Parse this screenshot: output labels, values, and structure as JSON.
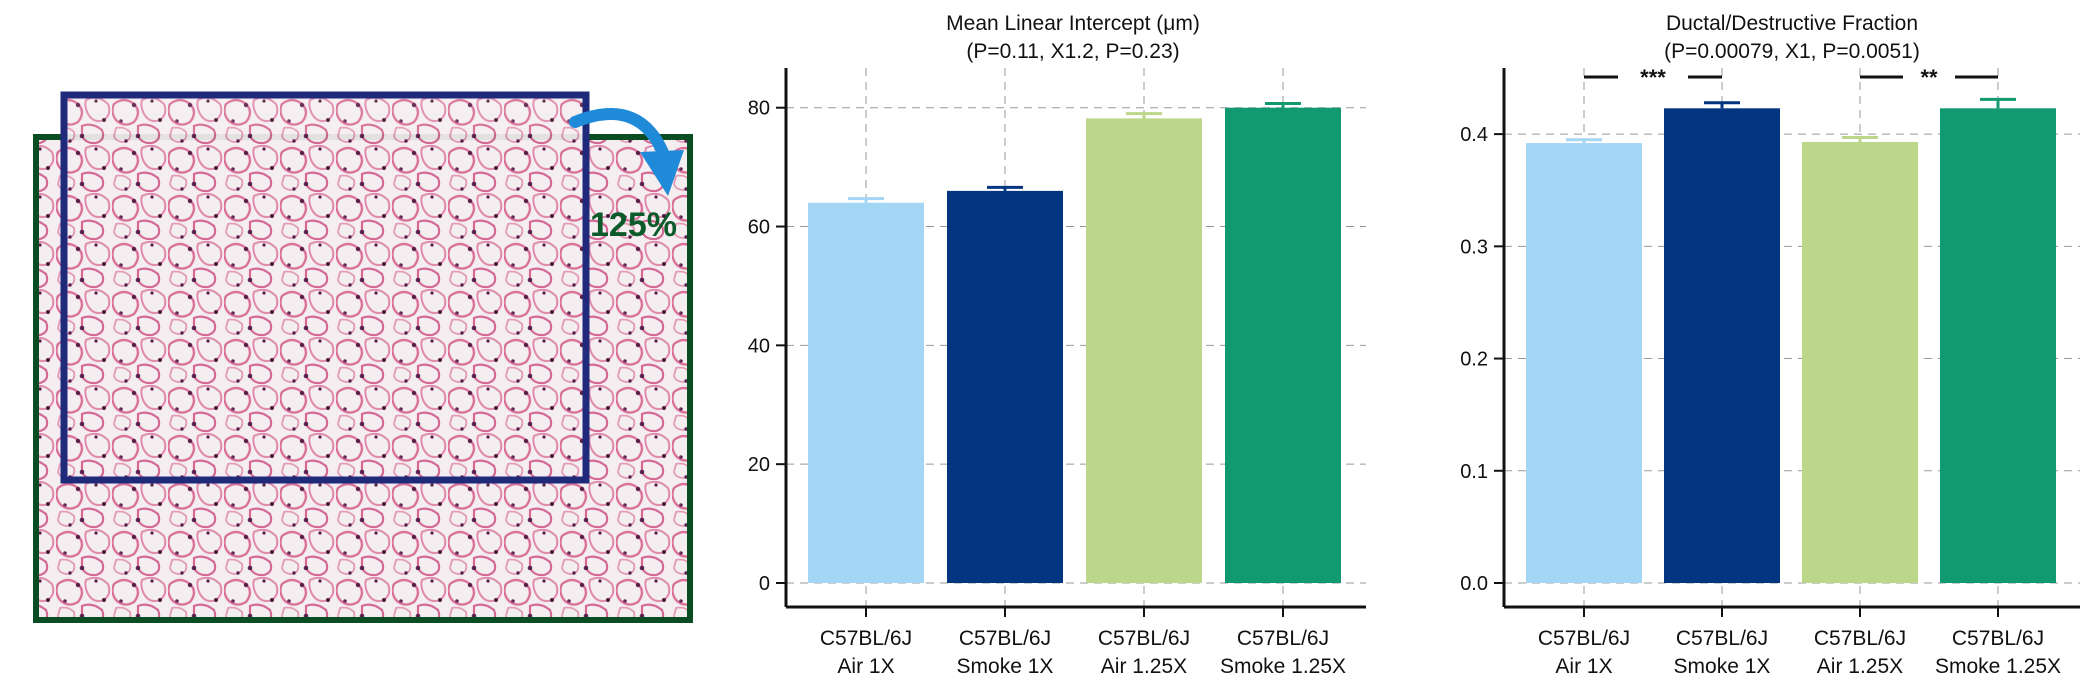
{
  "image_panel": {
    "zoom_label": "125%",
    "outer_frame_color": "#0b4d22",
    "inner_frame_color": "#1f2a7a",
    "arrow_color": "#1e8ad8"
  },
  "chart_data": [
    {
      "type": "bar",
      "title": "Mean Linear Intercept (μm)",
      "subtitle": "(P=0.11, X1.2, P=0.23)",
      "categories": [
        [
          "C57BL/6J",
          "Air 1X"
        ],
        [
          "C57BL/6J",
          "Smoke 1X"
        ],
        [
          "C57BL/6J",
          "Air 1.25X"
        ],
        [
          "C57BL/6J",
          "Smoke 1.25X"
        ]
      ],
      "values": [
        64.0,
        66.0,
        78.2,
        80.0
      ],
      "errors": [
        0.7,
        0.6,
        0.8,
        0.7
      ],
      "colors": [
        "#a3d5f4",
        "#033580",
        "#bcd78a",
        "#11996f"
      ],
      "ylim": [
        0,
        85
      ],
      "yticks": [
        0,
        20,
        40,
        60,
        80
      ],
      "ytick_labels": [
        "0",
        "20",
        "40",
        "60",
        "80"
      ],
      "grid": true,
      "significance": []
    },
    {
      "type": "bar",
      "title": "Ductal/Destructive Fraction",
      "subtitle": "(P=0.00079, X1, P=0.0051)",
      "categories": [
        [
          "C57BL/6J",
          "Air 1X"
        ],
        [
          "C57BL/6J",
          "Smoke 1X"
        ],
        [
          "C57BL/6J",
          "Air 1.25X"
        ],
        [
          "C57BL/6J",
          "Smoke 1.25X"
        ]
      ],
      "values": [
        0.392,
        0.423,
        0.393,
        0.423
      ],
      "errors": [
        0.003,
        0.005,
        0.004,
        0.008
      ],
      "colors": [
        "#a3d5f4",
        "#033580",
        "#bcd78a",
        "#11996f"
      ],
      "ylim": [
        0,
        0.45
      ],
      "yticks": [
        0.0,
        0.1,
        0.2,
        0.3,
        0.4
      ],
      "ytick_labels": [
        "0.0",
        "0.1",
        "0.2",
        "0.3",
        "0.4"
      ],
      "grid": true,
      "significance": [
        {
          "from": 0,
          "to": 1,
          "label": "***"
        },
        {
          "from": 2,
          "to": 3,
          "label": "**"
        }
      ]
    }
  ]
}
